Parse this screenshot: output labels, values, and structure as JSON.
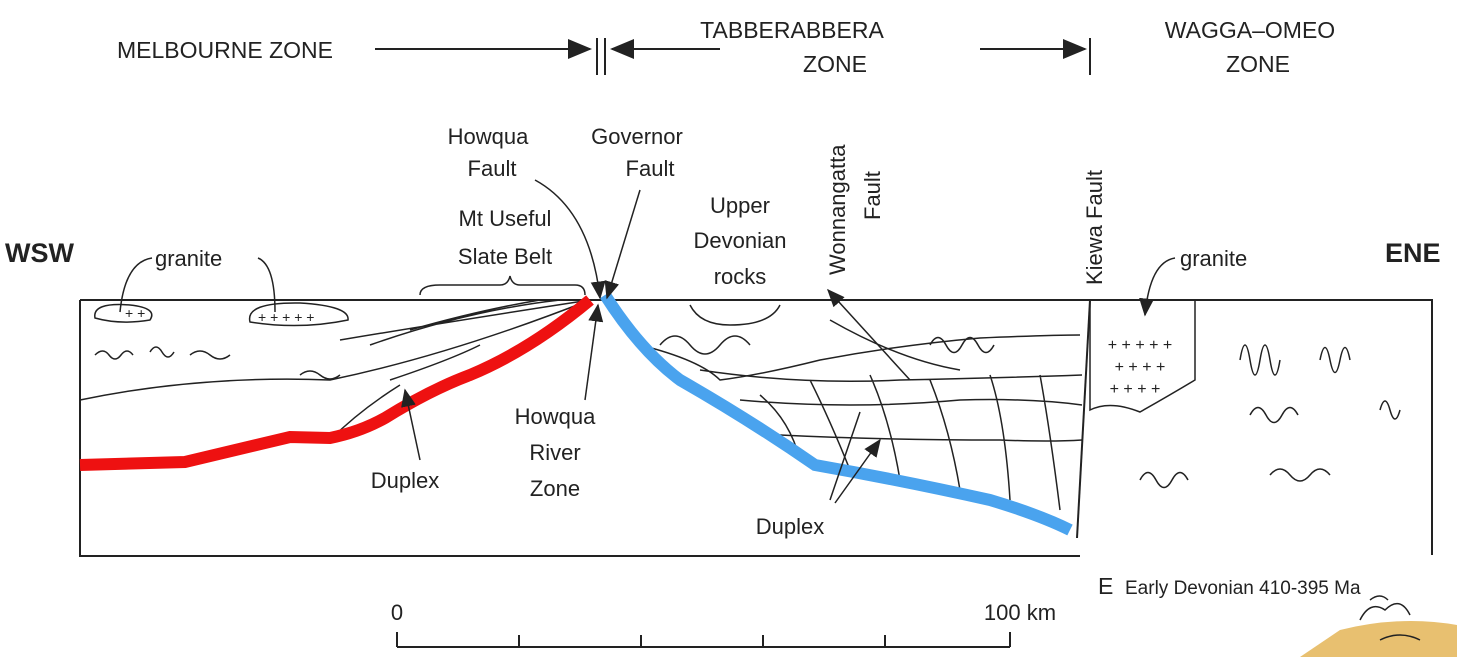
{
  "zones": [
    [
      "MELBOURNE ZONE"
    ],
    [
      "TABBERABBERA",
      "ZONE"
    ],
    [
      "WAGGA–OMEO",
      "ZONE"
    ]
  ],
  "directions": [
    "WSW",
    "ENE"
  ],
  "faults": [
    [
      "Howqua",
      "Fault"
    ],
    [
      "Governor",
      "Fault"
    ],
    [
      "Wonnangatta",
      "Fault"
    ],
    [
      "Kiewa Fault"
    ]
  ],
  "features": [
    [
      "granite"
    ],
    [
      "Mt Useful",
      "Slate Belt"
    ],
    [
      "Upper",
      "Devonian",
      "rocks"
    ],
    [
      "granite"
    ],
    [
      "Howqua",
      "River",
      "Zone"
    ],
    [
      "Duplex"
    ],
    [
      "Duplex"
    ]
  ],
  "caption": {
    "letter": "E",
    "text": "Early Devonian 410-395 Ma"
  },
  "scale": {
    "start": "0",
    "end": "100 km"
  }
}
